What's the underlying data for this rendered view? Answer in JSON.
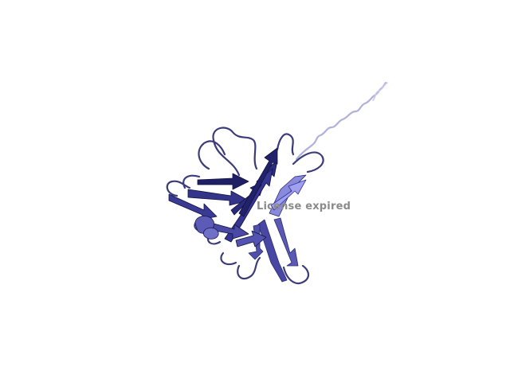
{
  "viewer": {
    "watermark_text": "License expired",
    "colors": {
      "background": "#ffffff",
      "strand_dark": "#1c1c5e",
      "strand_mid": "#3a3a8c",
      "strand_light": "#6c6cc4",
      "strand_highlight": "#9090e0",
      "coil": "#3b3b7a",
      "tail_coil": "#a8a8d8",
      "watermark": "#8a8a8a"
    },
    "render_subject": "protein-cartoon-beta-sandwich"
  }
}
